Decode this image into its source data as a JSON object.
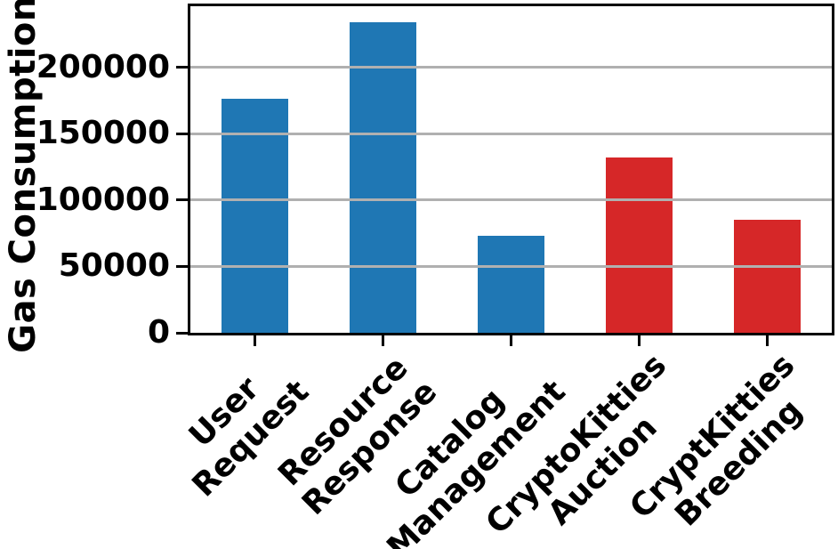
{
  "chart_data": {
    "type": "bar",
    "title": "",
    "xlabel": "",
    "ylabel": "Gas Consumption",
    "categories": [
      "User\nRequest",
      "Resource\nResponse",
      "Catalog\nManagement",
      "CryptoKitties\nAuction",
      "CryptKitties\nBreeding"
    ],
    "values": [
      176000,
      234000,
      73000,
      132000,
      85000
    ],
    "bar_colors": [
      "#1f77b4",
      "#1f77b4",
      "#1f77b4",
      "#d62728",
      "#d62728"
    ],
    "yticks": [
      0,
      50000,
      100000,
      150000,
      200000
    ],
    "ytick_labels": [
      "0",
      "50000",
      "100000",
      "150000",
      "200000"
    ],
    "ylim": [
      0,
      246000
    ],
    "grid": "horizontal-on-top-of-bars",
    "grid_color": "#b0b0b0",
    "axis_color": "#000000",
    "tick_label_rotation": 45,
    "legend": "none"
  }
}
